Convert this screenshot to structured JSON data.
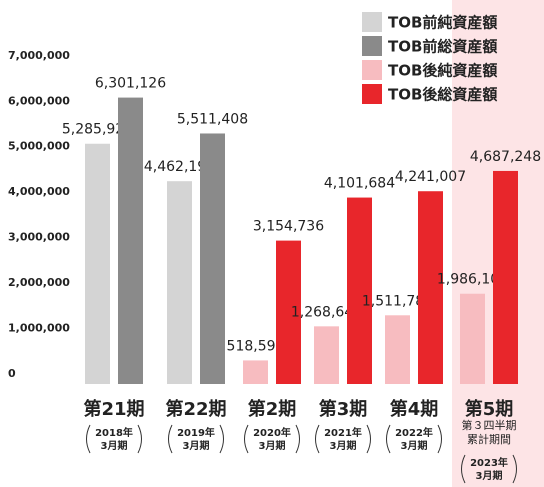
{
  "chart_data": {
    "type": "bar",
    "categories": [
      "第21期",
      "第22期",
      "第2期",
      "第3期",
      "第4期",
      "第5期"
    ],
    "period_labels": [
      [
        "2018年",
        "3月期"
      ],
      [
        "2019年",
        "3月期"
      ],
      [
        "2020年",
        "3月期"
      ],
      [
        "2021年",
        "3月期"
      ],
      [
        "2022年",
        "3月期"
      ],
      [
        "2023年",
        "3月期"
      ]
    ],
    "note": [
      "第３四半期",
      "累計期間"
    ],
    "series": [
      {
        "name": "TOB前純資産額",
        "color": "#d4d4d4",
        "values": [
          5285929,
          4462195,
          null,
          null,
          null,
          null
        ],
        "value_labels": [
          "5,285,929",
          "4,462,195",
          null,
          null,
          null,
          null
        ]
      },
      {
        "name": "TOB前総資産額",
        "color": "#8a8a8a",
        "values": [
          6301126,
          5511408,
          null,
          null,
          null,
          null
        ],
        "value_labels": [
          "6,301,126",
          "5,511,408",
          null,
          null,
          null,
          null
        ]
      },
      {
        "name": "TOB後純資産額",
        "color": "#f7bcc0",
        "values": [
          null,
          null,
          518595,
          1268641,
          1511780,
          1986108
        ],
        "value_labels": [
          null,
          null,
          "518,595",
          "1,268,641",
          "1,511,780",
          "1,986,108"
        ]
      },
      {
        "name": "TOB後総資産額",
        "color": "#e8262b",
        "values": [
          null,
          null,
          3154736,
          4101684,
          4241007,
          4687248
        ],
        "value_labels": [
          null,
          null,
          "3,154,736",
          "4,101,684",
          "4,241,007",
          "4,687,248"
        ]
      }
    ],
    "ylim": [
      0,
      7700000
    ],
    "yticks": [
      0,
      {
        "value": 1000000,
        "label": "1,000,000"
      },
      {
        "value": 2000000,
        "label": "2,000,000"
      },
      {
        "value": 3000000,
        "label": "3,000,000"
      },
      {
        "value": 4000000,
        "label": "4,000,000"
      },
      {
        "value": 5000000,
        "label": "5,000,000"
      },
      {
        "value": 6000000,
        "label": "6,000,000"
      },
      {
        "value": 7000000,
        "label": "7,000,000"
      }
    ],
    "grid": false,
    "legend": "top-right"
  }
}
